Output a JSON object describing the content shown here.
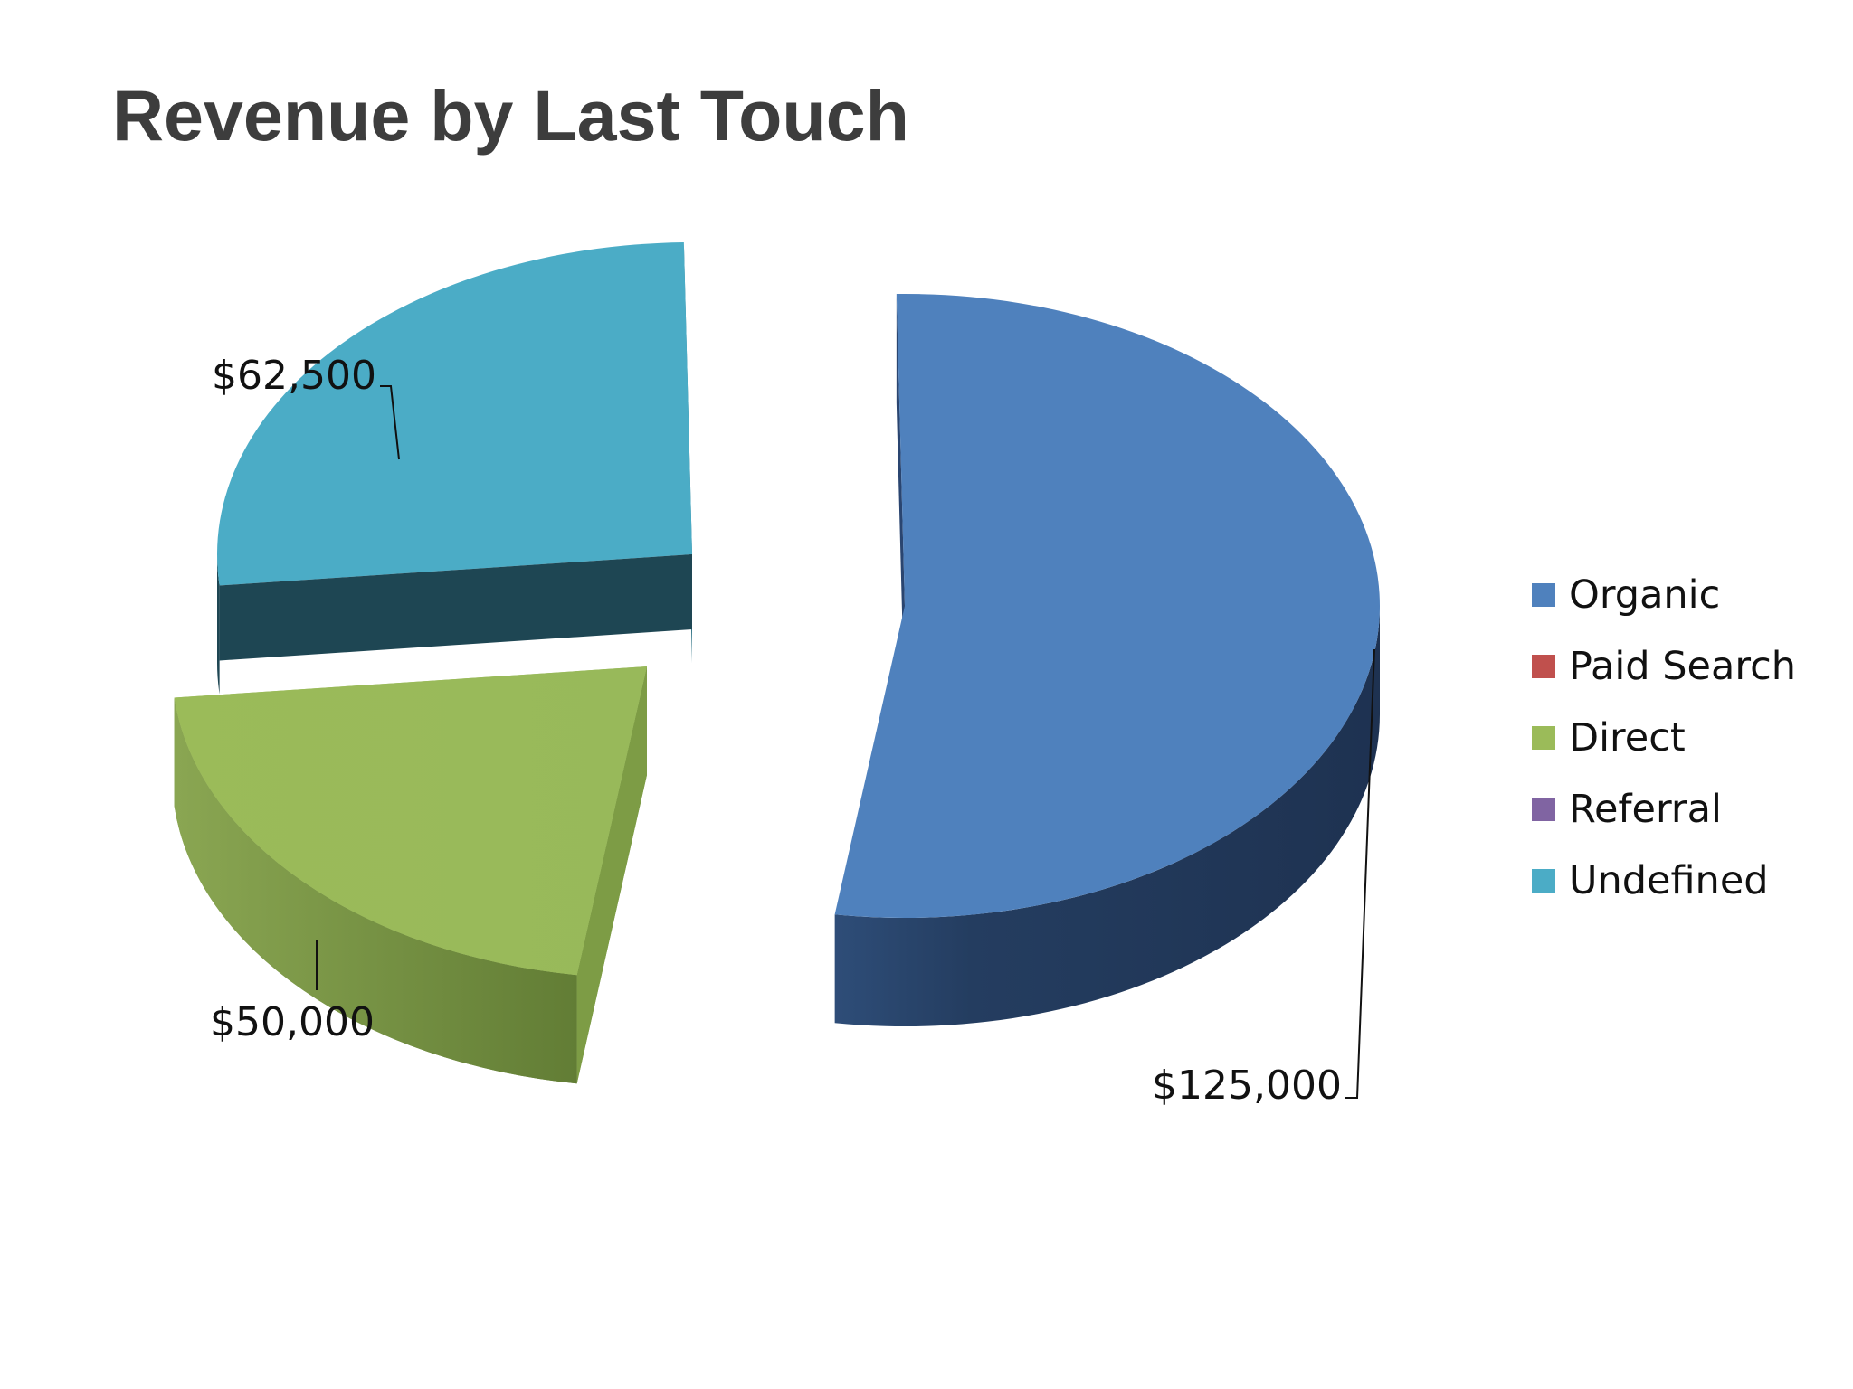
{
  "slide": {
    "title": "Revenue by Last Touch"
  },
  "chart_data": {
    "type": "pie",
    "style": "3d-exploded",
    "categories": [
      "Organic",
      "Paid Search",
      "Direct",
      "Referral",
      "Undefined"
    ],
    "values": [
      125000,
      0,
      50000,
      0,
      62500
    ],
    "data_labels": [
      "$125,000",
      "",
      "$50,000",
      "",
      "$62,500"
    ],
    "colors": [
      "#4f81bd",
      "#c0504d",
      "#9bbb59",
      "#8064a2",
      "#4bacc6"
    ],
    "legend_position": "right",
    "title": ""
  }
}
